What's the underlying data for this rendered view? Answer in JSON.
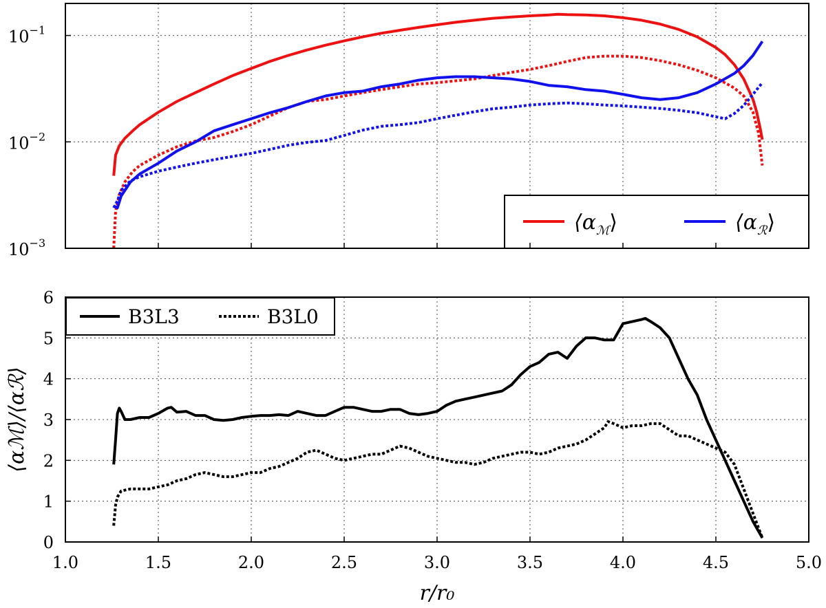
{
  "chart_data": [
    {
      "type": "line",
      "yscale": "log",
      "xlim": [
        1.0,
        5.0
      ],
      "ylim": [
        0.001,
        0.2
      ],
      "yticks": [
        {
          "value": 0.001,
          "base": "10",
          "exp": "−3"
        },
        {
          "value": 0.01,
          "base": "10",
          "exp": "−2"
        },
        {
          "value": 0.1,
          "base": "10",
          "exp": "−1"
        }
      ],
      "grid": true,
      "legend_position": "lower-right",
      "legend": [
        {
          "label": "⟨α",
          "sub": "ℳ",
          "close": "⟩",
          "color": "#ee1111"
        },
        {
          "label": "⟨α",
          "sub": "ℛ",
          "close": "⟩",
          "color": "#1111ee"
        }
      ],
      "series": [
        {
          "style": "solid",
          "color": "#ee1111",
          "x": [
            1.26,
            1.27,
            1.29,
            1.32,
            1.36,
            1.4,
            1.5,
            1.6,
            1.7,
            1.8,
            1.9,
            2.0,
            2.1,
            2.2,
            2.3,
            2.4,
            2.5,
            2.6,
            2.7,
            2.8,
            2.9,
            3.0,
            3.1,
            3.2,
            3.3,
            3.4,
            3.5,
            3.6,
            3.65,
            3.7,
            3.8,
            3.9,
            4.0,
            4.1,
            4.2,
            4.3,
            4.4,
            4.5,
            4.55,
            4.6,
            4.65,
            4.7,
            4.72,
            4.74,
            4.75
          ],
          "y": [
            0.0048,
            0.0075,
            0.0092,
            0.0108,
            0.0126,
            0.0145,
            0.019,
            0.024,
            0.029,
            0.035,
            0.042,
            0.049,
            0.057,
            0.065,
            0.073,
            0.081,
            0.089,
            0.097,
            0.105,
            0.112,
            0.119,
            0.126,
            0.133,
            0.139,
            0.145,
            0.149,
            0.153,
            0.156,
            0.158,
            0.157,
            0.156,
            0.153,
            0.147,
            0.139,
            0.128,
            0.114,
            0.097,
            0.077,
            0.066,
            0.053,
            0.039,
            0.025,
            0.019,
            0.013,
            0.0105
          ]
        },
        {
          "style": "dashed",
          "color": "#ee1111",
          "x": [
            1.26,
            1.27,
            1.29,
            1.32,
            1.36,
            1.4,
            1.5,
            1.6,
            1.7,
            1.8,
            1.9,
            2.0,
            2.1,
            2.2,
            2.3,
            2.4,
            2.5,
            2.6,
            2.7,
            2.8,
            2.9,
            3.0,
            3.1,
            3.2,
            3.3,
            3.4,
            3.5,
            3.6,
            3.7,
            3.8,
            3.9,
            4.0,
            4.1,
            4.2,
            4.3,
            4.4,
            4.5,
            4.6,
            4.65,
            4.7,
            4.73,
            4.75
          ],
          "y": [
            0.001,
            0.0022,
            0.0032,
            0.0042,
            0.0052,
            0.006,
            0.0075,
            0.009,
            0.0102,
            0.011,
            0.0125,
            0.0145,
            0.0175,
            0.021,
            0.024,
            0.025,
            0.027,
            0.029,
            0.031,
            0.033,
            0.035,
            0.036,
            0.0375,
            0.039,
            0.042,
            0.045,
            0.048,
            0.052,
            0.057,
            0.062,
            0.064,
            0.064,
            0.062,
            0.058,
            0.053,
            0.047,
            0.04,
            0.032,
            0.027,
            0.019,
            0.012,
            0.006
          ]
        },
        {
          "style": "solid",
          "color": "#1111ee",
          "x": [
            1.26,
            1.28,
            1.3,
            1.35,
            1.4,
            1.5,
            1.6,
            1.7,
            1.8,
            1.9,
            2.0,
            2.1,
            2.2,
            2.3,
            2.4,
            2.5,
            2.6,
            2.7,
            2.8,
            2.9,
            3.0,
            3.1,
            3.2,
            3.3,
            3.4,
            3.5,
            3.6,
            3.7,
            3.8,
            3.9,
            4.0,
            4.1,
            4.2,
            4.3,
            4.4,
            4.5,
            4.6,
            4.65,
            4.7,
            4.75
          ],
          "y": [
            0.0025,
            0.0024,
            0.0031,
            0.0042,
            0.005,
            0.0063,
            0.0082,
            0.01,
            0.0127,
            0.0145,
            0.0165,
            0.0188,
            0.021,
            0.024,
            0.027,
            0.029,
            0.03,
            0.033,
            0.035,
            0.038,
            0.04,
            0.041,
            0.041,
            0.04,
            0.039,
            0.037,
            0.034,
            0.033,
            0.031,
            0.03,
            0.028,
            0.026,
            0.025,
            0.026,
            0.029,
            0.035,
            0.044,
            0.052,
            0.065,
            0.088
          ]
        },
        {
          "style": "dashed",
          "color": "#1111ee",
          "x": [
            1.26,
            1.28,
            1.3,
            1.35,
            1.4,
            1.5,
            1.6,
            1.7,
            1.8,
            1.9,
            2.0,
            2.1,
            2.2,
            2.3,
            2.4,
            2.5,
            2.6,
            2.7,
            2.8,
            2.9,
            3.0,
            3.1,
            3.2,
            3.3,
            3.4,
            3.5,
            3.6,
            3.7,
            3.8,
            3.9,
            4.0,
            4.1,
            4.2,
            4.3,
            4.4,
            4.5,
            4.55,
            4.6,
            4.65,
            4.7,
            4.75
          ],
          "y": [
            0.0024,
            0.0028,
            0.0035,
            0.0043,
            0.0047,
            0.0053,
            0.0058,
            0.0063,
            0.0068,
            0.0073,
            0.0078,
            0.0085,
            0.0093,
            0.0099,
            0.0103,
            0.0115,
            0.0129,
            0.014,
            0.0145,
            0.0152,
            0.0165,
            0.0178,
            0.0192,
            0.0205,
            0.0212,
            0.0222,
            0.0228,
            0.0232,
            0.0228,
            0.0222,
            0.0218,
            0.0212,
            0.0206,
            0.0198,
            0.0188,
            0.0172,
            0.0165,
            0.0185,
            0.022,
            0.028,
            0.036
          ]
        }
      ]
    },
    {
      "type": "line",
      "xlim": [
        1.0,
        5.0
      ],
      "ylim": [
        0,
        6
      ],
      "xticks": [
        1.0,
        1.5,
        2.0,
        2.5,
        3.0,
        3.5,
        4.0,
        4.5,
        5.0
      ],
      "xtick_labels": [
        "1.0",
        "1.5",
        "2.0",
        "2.5",
        "3.0",
        "3.5",
        "4.0",
        "4.5",
        "5.0"
      ],
      "yticks": [
        0,
        1,
        2,
        3,
        4,
        5,
        6
      ],
      "ytick_labels": [
        "0",
        "1",
        "2",
        "3",
        "4",
        "5",
        "6"
      ],
      "xlabel": "r/r₀",
      "ylabel": "⟨αℳ⟩/⟨αℛ⟩",
      "grid": true,
      "legend_position": "upper-left",
      "legend": [
        {
          "label": "B3L3",
          "style": "solid"
        },
        {
          "label": "B3L0",
          "style": "dashed"
        }
      ],
      "series": [
        {
          "name": "B3L3",
          "style": "solid",
          "color": "#000000",
          "x": [
            1.26,
            1.27,
            1.28,
            1.29,
            1.3,
            1.32,
            1.35,
            1.4,
            1.45,
            1.5,
            1.55,
            1.57,
            1.6,
            1.65,
            1.7,
            1.75,
            1.8,
            1.85,
            1.9,
            1.95,
            2.0,
            2.05,
            2.1,
            2.15,
            2.2,
            2.25,
            2.3,
            2.35,
            2.4,
            2.45,
            2.5,
            2.55,
            2.6,
            2.65,
            2.7,
            2.75,
            2.8,
            2.85,
            2.9,
            2.95,
            3.0,
            3.05,
            3.1,
            3.15,
            3.2,
            3.25,
            3.3,
            3.35,
            3.4,
            3.45,
            3.5,
            3.55,
            3.6,
            3.65,
            3.7,
            3.75,
            3.8,
            3.85,
            3.9,
            3.95,
            4.0,
            4.05,
            4.1,
            4.12,
            4.15,
            4.2,
            4.25,
            4.3,
            4.35,
            4.4,
            4.45,
            4.5,
            4.55,
            4.6,
            4.65,
            4.7,
            4.75
          ],
          "y": [
            1.9,
            2.5,
            3.15,
            3.28,
            3.2,
            3.0,
            3.0,
            3.05,
            3.05,
            3.15,
            3.28,
            3.3,
            3.18,
            3.2,
            3.1,
            3.1,
            3.0,
            2.98,
            3.0,
            3.05,
            3.08,
            3.1,
            3.1,
            3.12,
            3.1,
            3.2,
            3.15,
            3.1,
            3.1,
            3.2,
            3.3,
            3.3,
            3.25,
            3.2,
            3.2,
            3.25,
            3.25,
            3.15,
            3.12,
            3.15,
            3.2,
            3.35,
            3.45,
            3.5,
            3.55,
            3.6,
            3.65,
            3.7,
            3.85,
            4.1,
            4.3,
            4.4,
            4.6,
            4.65,
            4.5,
            4.8,
            5.0,
            5.0,
            4.95,
            4.95,
            5.35,
            5.4,
            5.45,
            5.48,
            5.4,
            5.25,
            5.0,
            4.5,
            4.0,
            3.6,
            3.0,
            2.5,
            2.0,
            1.5,
            1.0,
            0.5,
            0.1
          ]
        },
        {
          "name": "B3L0",
          "style": "dashed",
          "color": "#000000",
          "x": [
            1.26,
            1.27,
            1.28,
            1.3,
            1.35,
            1.4,
            1.45,
            1.5,
            1.55,
            1.6,
            1.65,
            1.7,
            1.75,
            1.8,
            1.85,
            1.9,
            1.95,
            2.0,
            2.05,
            2.1,
            2.15,
            2.2,
            2.25,
            2.3,
            2.35,
            2.4,
            2.45,
            2.5,
            2.55,
            2.6,
            2.65,
            2.7,
            2.75,
            2.8,
            2.85,
            2.9,
            2.95,
            3.0,
            3.05,
            3.1,
            3.15,
            3.2,
            3.25,
            3.3,
            3.35,
            3.4,
            3.45,
            3.5,
            3.55,
            3.6,
            3.65,
            3.7,
            3.75,
            3.8,
            3.85,
            3.9,
            3.92,
            3.95,
            4.0,
            4.05,
            4.1,
            4.15,
            4.2,
            4.25,
            4.3,
            4.35,
            4.4,
            4.45,
            4.5,
            4.55,
            4.6,
            4.65,
            4.7,
            4.75
          ],
          "y": [
            0.4,
            0.9,
            1.1,
            1.25,
            1.3,
            1.3,
            1.3,
            1.35,
            1.4,
            1.5,
            1.55,
            1.65,
            1.7,
            1.65,
            1.6,
            1.6,
            1.65,
            1.7,
            1.7,
            1.8,
            1.85,
            1.95,
            2.05,
            2.2,
            2.25,
            2.15,
            2.05,
            2.0,
            2.05,
            2.1,
            2.15,
            2.15,
            2.25,
            2.35,
            2.3,
            2.2,
            2.1,
            2.05,
            2.0,
            1.95,
            1.95,
            1.9,
            1.95,
            2.05,
            2.1,
            2.15,
            2.2,
            2.2,
            2.15,
            2.2,
            2.3,
            2.35,
            2.4,
            2.5,
            2.65,
            2.8,
            2.95,
            2.9,
            2.8,
            2.85,
            2.85,
            2.9,
            2.9,
            2.75,
            2.6,
            2.6,
            2.5,
            2.4,
            2.3,
            2.2,
            1.9,
            1.3,
            0.7,
            0.1
          ]
        }
      ]
    }
  ]
}
